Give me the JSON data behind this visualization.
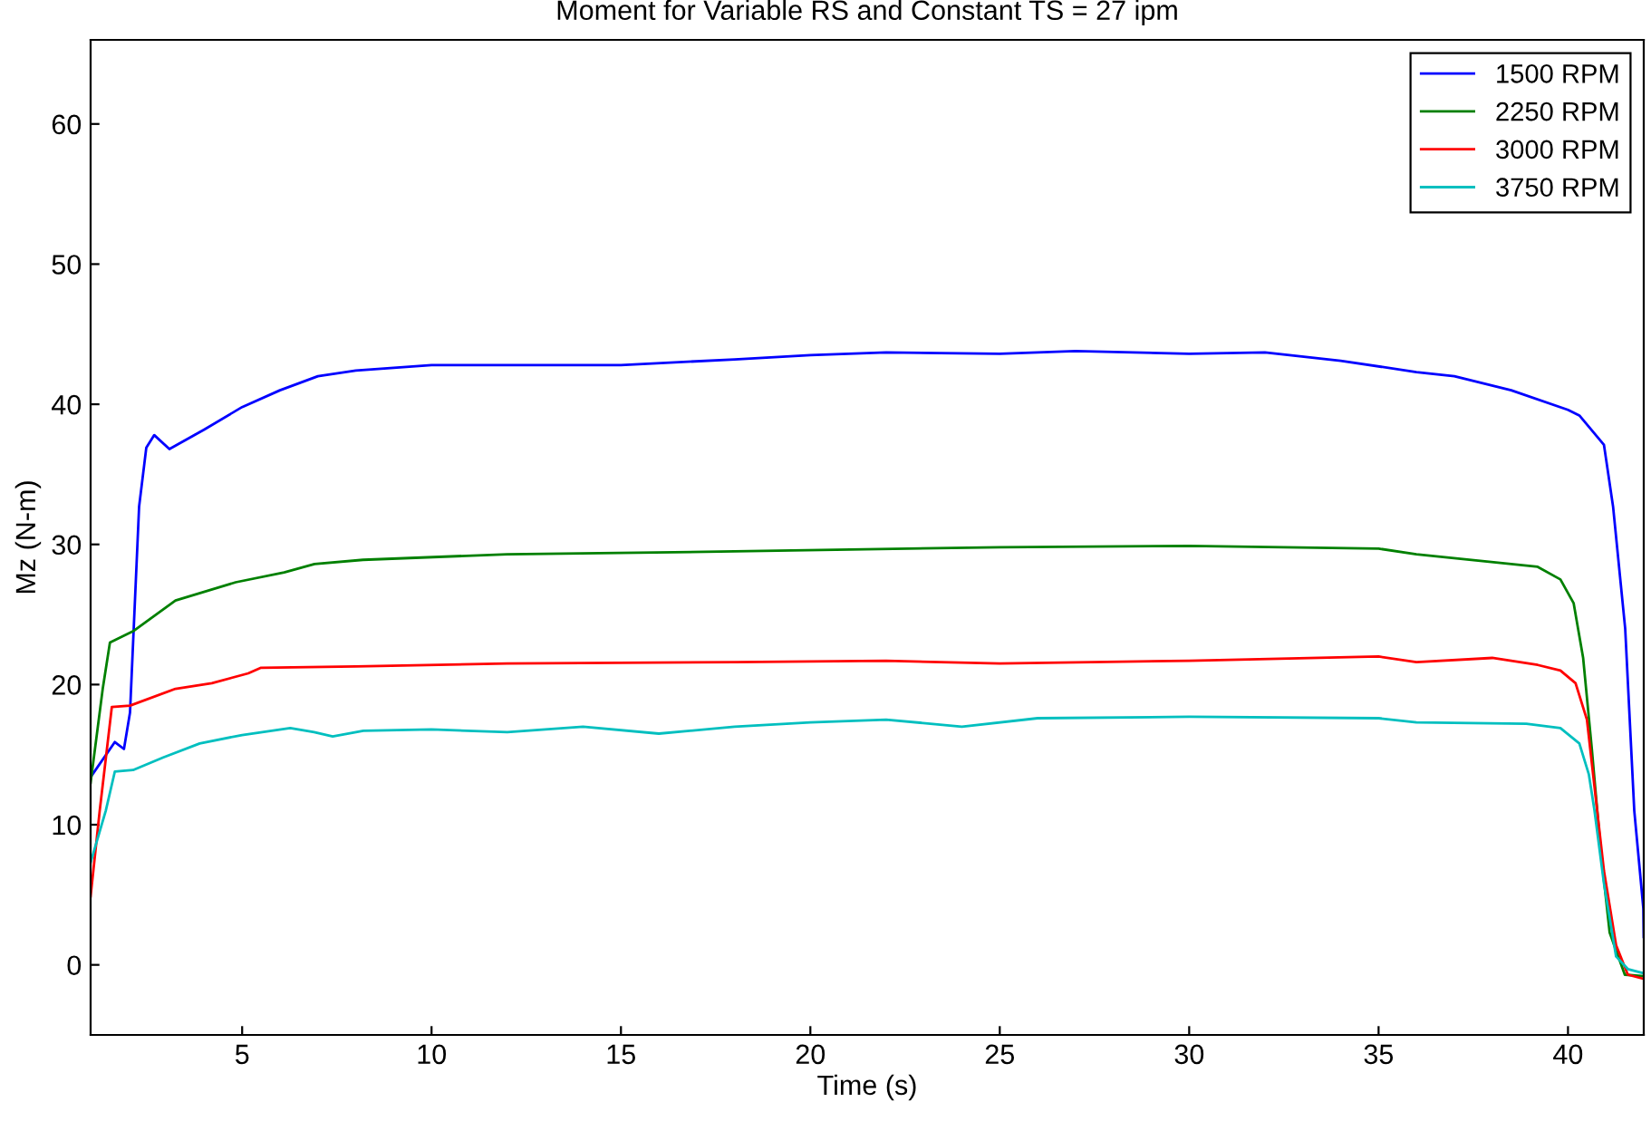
{
  "chart_data": {
    "type": "line",
    "title": "Moment for Variable RS and Constant TS = 27 ipm",
    "xlabel": "Time (s)",
    "ylabel": "Mz (N-m)",
    "xlim": [
      1,
      42
    ],
    "ylim": [
      -5,
      66
    ],
    "xticks": [
      5,
      10,
      15,
      20,
      25,
      30,
      35,
      40
    ],
    "yticks": [
      0,
      10,
      20,
      30,
      40,
      50,
      60
    ],
    "grid": false,
    "legend": "top right",
    "series": [
      {
        "name": "1500 RPM",
        "color": "#0000ff",
        "x": [
          1,
          1.64,
          1.88,
          2.04,
          2.28,
          2.47,
          2.68,
          3.08,
          4,
          5,
          6,
          7,
          8,
          10,
          12,
          15,
          18,
          20,
          22,
          25,
          27,
          30,
          32,
          34,
          36,
          37,
          38.5,
          40,
          40.3,
          40.95,
          41.19,
          41.51,
          41.75,
          41.99,
          42
        ],
        "values": [
          13.4,
          15.9,
          15.4,
          18,
          32.7,
          36.9,
          37.8,
          36.8,
          38.2,
          39.8,
          41,
          42,
          42.4,
          42.8,
          42.8,
          42.8,
          43.2,
          43.5,
          43.7,
          43.6,
          43.8,
          43.6,
          43.7,
          43.1,
          42.3,
          42,
          41,
          39.6,
          39.2,
          37.1,
          32.7,
          24,
          11,
          4,
          2
        ]
      },
      {
        "name": "2250 RPM",
        "color": "#008000",
        "x": [
          1,
          1.32,
          1.51,
          2.12,
          3.24,
          4.83,
          6.11,
          6.91,
          8.19,
          12,
          18,
          25,
          30,
          35,
          36,
          39.2,
          39.8,
          40.15,
          40.4,
          40.63,
          40.87,
          41.1,
          41.5,
          42
        ],
        "values": [
          13,
          19.7,
          23,
          23.8,
          26,
          27.3,
          28,
          28.6,
          28.9,
          29.3,
          29.5,
          29.8,
          29.9,
          29.7,
          29.3,
          28.4,
          27.5,
          25.8,
          21.9,
          15.4,
          8,
          2.3,
          -0.7,
          -0.8
        ]
      },
      {
        "name": "3000 RPM",
        "color": "#ff0000",
        "x": [
          1,
          1.24,
          1.56,
          2.04,
          3.24,
          4.2,
          5.16,
          5.5,
          8,
          12,
          18,
          22,
          25,
          30,
          35,
          36,
          38,
          39.2,
          39.8,
          40.2,
          40.5,
          40.7,
          40.95,
          41.27,
          41.58,
          42
        ],
        "values": [
          4.9,
          11,
          18.4,
          18.5,
          19.7,
          20.1,
          20.8,
          21.2,
          21.3,
          21.5,
          21.6,
          21.7,
          21.5,
          21.7,
          22,
          21.6,
          21.9,
          21.4,
          21,
          20.1,
          17.5,
          12.7,
          6.7,
          1.4,
          -0.7,
          -1
        ]
      },
      {
        "name": "3750 RPM",
        "color": "#00bfbf",
        "x": [
          1,
          1.4,
          1.64,
          2.12,
          2.92,
          3.88,
          5,
          6.27,
          6.9,
          7.39,
          8.2,
          10,
          12,
          14,
          16,
          18,
          20,
          22,
          24,
          26,
          30,
          35,
          36,
          38.9,
          39.8,
          40.3,
          40.55,
          40.7,
          40.95,
          41.27,
          41.58,
          42
        ],
        "values": [
          7.3,
          11,
          13.8,
          13.9,
          14.8,
          15.8,
          16.4,
          16.9,
          16.6,
          16.3,
          16.7,
          16.8,
          16.6,
          17,
          16.5,
          17,
          17.3,
          17.5,
          17,
          17.6,
          17.7,
          17.6,
          17.3,
          17.2,
          16.9,
          15.8,
          13.6,
          11,
          5.8,
          0.6,
          -0.3,
          -0.6
        ]
      }
    ]
  }
}
